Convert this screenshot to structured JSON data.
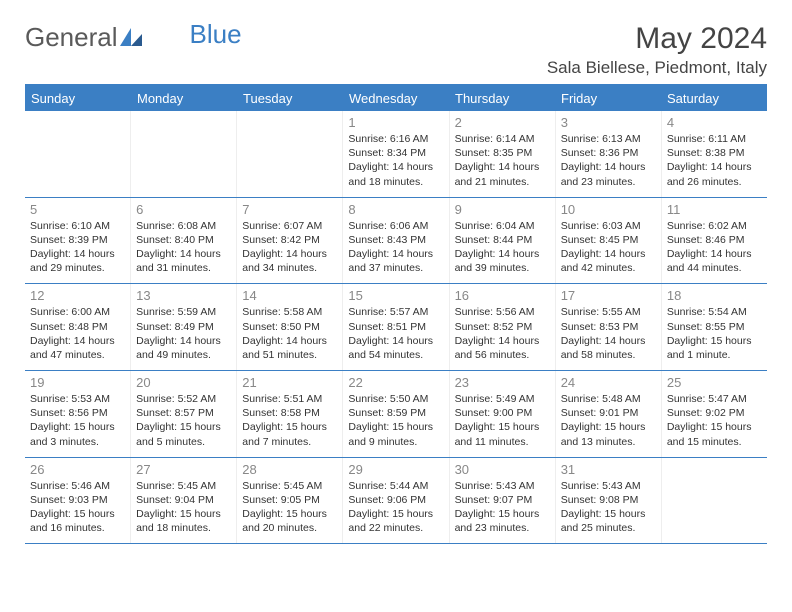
{
  "brand": {
    "part1": "General",
    "part2": "Blue"
  },
  "title": "May 2024",
  "location": "Sala Biellese, Piedmont, Italy",
  "colors": {
    "header_bg": "#3b7fc4",
    "header_text": "#ffffff",
    "border": "#3b7fc4",
    "day_num": "#888888",
    "body_text": "#333333",
    "brand_gray": "#5a5a5a",
    "brand_blue": "#3b7fc4"
  },
  "day_names": [
    "Sunday",
    "Monday",
    "Tuesday",
    "Wednesday",
    "Thursday",
    "Friday",
    "Saturday"
  ],
  "weeks": [
    [
      {
        "num": "",
        "sunrise": "",
        "sunset": "",
        "daylight": ""
      },
      {
        "num": "",
        "sunrise": "",
        "sunset": "",
        "daylight": ""
      },
      {
        "num": "",
        "sunrise": "",
        "sunset": "",
        "daylight": ""
      },
      {
        "num": "1",
        "sunrise": "Sunrise: 6:16 AM",
        "sunset": "Sunset: 8:34 PM",
        "daylight": "Daylight: 14 hours and 18 minutes."
      },
      {
        "num": "2",
        "sunrise": "Sunrise: 6:14 AM",
        "sunset": "Sunset: 8:35 PM",
        "daylight": "Daylight: 14 hours and 21 minutes."
      },
      {
        "num": "3",
        "sunrise": "Sunrise: 6:13 AM",
        "sunset": "Sunset: 8:36 PM",
        "daylight": "Daylight: 14 hours and 23 minutes."
      },
      {
        "num": "4",
        "sunrise": "Sunrise: 6:11 AM",
        "sunset": "Sunset: 8:38 PM",
        "daylight": "Daylight: 14 hours and 26 minutes."
      }
    ],
    [
      {
        "num": "5",
        "sunrise": "Sunrise: 6:10 AM",
        "sunset": "Sunset: 8:39 PM",
        "daylight": "Daylight: 14 hours and 29 minutes."
      },
      {
        "num": "6",
        "sunrise": "Sunrise: 6:08 AM",
        "sunset": "Sunset: 8:40 PM",
        "daylight": "Daylight: 14 hours and 31 minutes."
      },
      {
        "num": "7",
        "sunrise": "Sunrise: 6:07 AM",
        "sunset": "Sunset: 8:42 PM",
        "daylight": "Daylight: 14 hours and 34 minutes."
      },
      {
        "num": "8",
        "sunrise": "Sunrise: 6:06 AM",
        "sunset": "Sunset: 8:43 PM",
        "daylight": "Daylight: 14 hours and 37 minutes."
      },
      {
        "num": "9",
        "sunrise": "Sunrise: 6:04 AM",
        "sunset": "Sunset: 8:44 PM",
        "daylight": "Daylight: 14 hours and 39 minutes."
      },
      {
        "num": "10",
        "sunrise": "Sunrise: 6:03 AM",
        "sunset": "Sunset: 8:45 PM",
        "daylight": "Daylight: 14 hours and 42 minutes."
      },
      {
        "num": "11",
        "sunrise": "Sunrise: 6:02 AM",
        "sunset": "Sunset: 8:46 PM",
        "daylight": "Daylight: 14 hours and 44 minutes."
      }
    ],
    [
      {
        "num": "12",
        "sunrise": "Sunrise: 6:00 AM",
        "sunset": "Sunset: 8:48 PM",
        "daylight": "Daylight: 14 hours and 47 minutes."
      },
      {
        "num": "13",
        "sunrise": "Sunrise: 5:59 AM",
        "sunset": "Sunset: 8:49 PM",
        "daylight": "Daylight: 14 hours and 49 minutes."
      },
      {
        "num": "14",
        "sunrise": "Sunrise: 5:58 AM",
        "sunset": "Sunset: 8:50 PM",
        "daylight": "Daylight: 14 hours and 51 minutes."
      },
      {
        "num": "15",
        "sunrise": "Sunrise: 5:57 AM",
        "sunset": "Sunset: 8:51 PM",
        "daylight": "Daylight: 14 hours and 54 minutes."
      },
      {
        "num": "16",
        "sunrise": "Sunrise: 5:56 AM",
        "sunset": "Sunset: 8:52 PM",
        "daylight": "Daylight: 14 hours and 56 minutes."
      },
      {
        "num": "17",
        "sunrise": "Sunrise: 5:55 AM",
        "sunset": "Sunset: 8:53 PM",
        "daylight": "Daylight: 14 hours and 58 minutes."
      },
      {
        "num": "18",
        "sunrise": "Sunrise: 5:54 AM",
        "sunset": "Sunset: 8:55 PM",
        "daylight": "Daylight: 15 hours and 1 minute."
      }
    ],
    [
      {
        "num": "19",
        "sunrise": "Sunrise: 5:53 AM",
        "sunset": "Sunset: 8:56 PM",
        "daylight": "Daylight: 15 hours and 3 minutes."
      },
      {
        "num": "20",
        "sunrise": "Sunrise: 5:52 AM",
        "sunset": "Sunset: 8:57 PM",
        "daylight": "Daylight: 15 hours and 5 minutes."
      },
      {
        "num": "21",
        "sunrise": "Sunrise: 5:51 AM",
        "sunset": "Sunset: 8:58 PM",
        "daylight": "Daylight: 15 hours and 7 minutes."
      },
      {
        "num": "22",
        "sunrise": "Sunrise: 5:50 AM",
        "sunset": "Sunset: 8:59 PM",
        "daylight": "Daylight: 15 hours and 9 minutes."
      },
      {
        "num": "23",
        "sunrise": "Sunrise: 5:49 AM",
        "sunset": "Sunset: 9:00 PM",
        "daylight": "Daylight: 15 hours and 11 minutes."
      },
      {
        "num": "24",
        "sunrise": "Sunrise: 5:48 AM",
        "sunset": "Sunset: 9:01 PM",
        "daylight": "Daylight: 15 hours and 13 minutes."
      },
      {
        "num": "25",
        "sunrise": "Sunrise: 5:47 AM",
        "sunset": "Sunset: 9:02 PM",
        "daylight": "Daylight: 15 hours and 15 minutes."
      }
    ],
    [
      {
        "num": "26",
        "sunrise": "Sunrise: 5:46 AM",
        "sunset": "Sunset: 9:03 PM",
        "daylight": "Daylight: 15 hours and 16 minutes."
      },
      {
        "num": "27",
        "sunrise": "Sunrise: 5:45 AM",
        "sunset": "Sunset: 9:04 PM",
        "daylight": "Daylight: 15 hours and 18 minutes."
      },
      {
        "num": "28",
        "sunrise": "Sunrise: 5:45 AM",
        "sunset": "Sunset: 9:05 PM",
        "daylight": "Daylight: 15 hours and 20 minutes."
      },
      {
        "num": "29",
        "sunrise": "Sunrise: 5:44 AM",
        "sunset": "Sunset: 9:06 PM",
        "daylight": "Daylight: 15 hours and 22 minutes."
      },
      {
        "num": "30",
        "sunrise": "Sunrise: 5:43 AM",
        "sunset": "Sunset: 9:07 PM",
        "daylight": "Daylight: 15 hours and 23 minutes."
      },
      {
        "num": "31",
        "sunrise": "Sunrise: 5:43 AM",
        "sunset": "Sunset: 9:08 PM",
        "daylight": "Daylight: 15 hours and 25 minutes."
      },
      {
        "num": "",
        "sunrise": "",
        "sunset": "",
        "daylight": ""
      }
    ]
  ]
}
